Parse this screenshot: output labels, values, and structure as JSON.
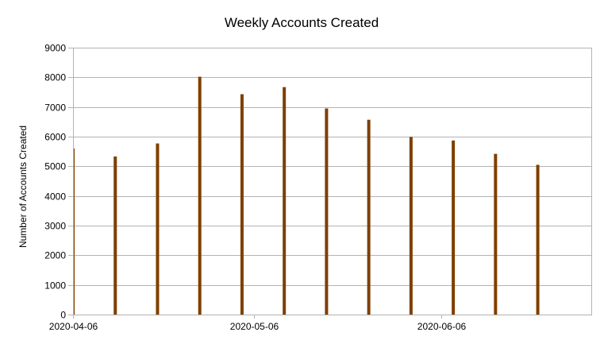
{
  "chart_data": {
    "type": "bar",
    "title": "Weekly Accounts Created",
    "xlabel": "",
    "ylabel": "Number of Accounts Created",
    "ylim": [
      0,
      9000
    ],
    "yticks": [
      0,
      1000,
      2000,
      3000,
      4000,
      5000,
      6000,
      7000,
      8000,
      9000
    ],
    "xlim": [
      "2020-04-06",
      "2020-07-01"
    ],
    "xticks": [
      "2020-04-06",
      "2020-05-06",
      "2020-06-06"
    ],
    "grid": true,
    "legend": "none",
    "bar_color": "#7f3f00",
    "x": [
      "2020-04-06",
      "2020-04-13",
      "2020-04-20",
      "2020-04-27",
      "2020-05-04",
      "2020-05-11",
      "2020-05-18",
      "2020-05-25",
      "2020-06-01",
      "2020-06-08",
      "2020-06-15",
      "2020-06-22"
    ],
    "values": [
      5600,
      5330,
      5770,
      8020,
      7430,
      7670,
      6950,
      6570,
      5990,
      5870,
      5420,
      5050
    ]
  }
}
